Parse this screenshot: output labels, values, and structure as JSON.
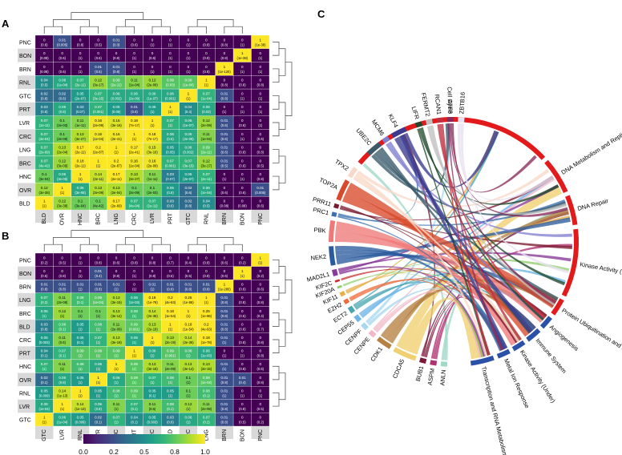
{
  "panels": {
    "a": "A",
    "b": "B",
    "c": "C"
  },
  "colors": {
    "viridis": [
      "#440154",
      "#482878",
      "#3e4989",
      "#31688e",
      "#26828e",
      "#1f9e89",
      "#35b779",
      "#6ece58",
      "#b5de2b",
      "#fde725"
    ],
    "row_label_bg": [
      "#ffffff",
      "#d9d9d9"
    ],
    "chord_red": "#e31a1c",
    "chord_blue": "#2b50a8"
  },
  "colorbar": {
    "ticks": [
      "0.0",
      "0.2",
      "0.5",
      "0.8",
      "1.0"
    ],
    "values": [
      0,
      0.25,
      0.5,
      0.75,
      1
    ]
  },
  "chart_data": [
    {
      "type": "heatmap",
      "panel": "A",
      "rows": [
        "PNC",
        "BON",
        "BRN",
        "RNL",
        "GTC",
        "PRT",
        "LVR",
        "CRC",
        "LNG",
        "BRC",
        "HNC",
        "OVR",
        "BLD"
      ],
      "cols": [
        "BLD",
        "OVR",
        "HNC",
        "BRC",
        "LNG",
        "CRC",
        "LVR",
        "PRT",
        "GTC",
        "RNL",
        "BRN",
        "BON",
        "PNC"
      ],
      "values": [
        [
          0,
          0.01,
          0,
          0,
          0.01,
          0,
          0,
          0,
          0,
          0,
          0,
          0,
          1
        ],
        [
          0,
          0,
          0,
          0,
          0,
          0,
          0,
          0,
          0,
          0,
          0,
          1,
          0
        ],
        [
          0,
          0,
          0,
          0.01,
          0.01,
          0,
          0,
          0,
          0,
          0,
          1,
          0,
          0
        ],
        [
          0.04,
          0.06,
          0.07,
          0.12,
          0.09,
          0.11,
          0.12,
          0.09,
          0.09,
          1,
          0,
          0,
          0
        ],
        [
          0.02,
          0.02,
          0.05,
          0.07,
          0.06,
          0.06,
          0.06,
          0.06,
          1,
          0.07,
          0.01,
          0,
          0
        ],
        [
          0.03,
          0.06,
          0.03,
          0.07,
          0.05,
          0.01,
          0.05,
          1,
          0.04,
          0.06,
          0,
          0,
          0
        ],
        [
          0.07,
          0.1,
          0.11,
          0.16,
          0.15,
          0.18,
          1,
          0.07,
          0.06,
          0.12,
          0.01,
          0,
          0
        ],
        [
          0.07,
          0.1,
          0.13,
          0.16,
          0.16,
          1,
          0.18,
          0.06,
          0.06,
          0.11,
          0.01,
          0,
          0
        ],
        [
          0.07,
          0.13,
          0.17,
          0.2,
          1,
          0.17,
          0.15,
          0.05,
          0.06,
          0.09,
          0.01,
          0,
          0
        ],
        [
          0.07,
          0.12,
          0.18,
          1,
          0.2,
          0.16,
          0.16,
          0.07,
          0.07,
          0.12,
          0.01,
          0,
          0
        ],
        [
          0.1,
          0.06,
          1,
          0.14,
          0.17,
          0.13,
          0.11,
          0.03,
          0.05,
          0.07,
          0,
          0,
          0
        ],
        [
          0.12,
          1,
          0.06,
          0.13,
          0.13,
          0.1,
          0.1,
          0.05,
          0.02,
          0.06,
          0,
          0,
          0.01
        ],
        [
          1,
          0.12,
          0.1,
          0.1,
          0.17,
          0.07,
          0.07,
          0.03,
          0.02,
          0.04,
          0,
          0,
          0
        ]
      ],
      "pvalues": [
        [
          "(0.6)",
          "(0.005)",
          "(0.8)",
          "(0.5)",
          "(0.3)",
          "(0.6)",
          "(1)",
          "(1)",
          "(1)",
          "(0.8)",
          "(0.8)",
          "(1)",
          "(1e-38)"
        ],
        [
          "(0.08)",
          "(0.6)",
          "(1)",
          "(0.6)",
          "(0.8)",
          "(1)",
          "(0.6)",
          "(1)",
          "(1)",
          "(0.8)",
          "(0.8)",
          "(1e-38)",
          "(1)"
        ],
        [
          "(0.08)",
          "(0.6)",
          "(1)",
          "(0.5)",
          "(0.8)",
          "(1)",
          "(1)",
          "(1)",
          "(1)",
          "(0.8)",
          "(1e-120)",
          "(1)",
          "(1)"
        ],
        [
          "(0.5)",
          "(1e-04)",
          "(2e-11)",
          "(3e-17)",
          "(2e-11)",
          "(1e-04)",
          "(2e-09)",
          "(0.03)",
          "(1e-04)",
          "(1)",
          "(0.8)",
          "(0.8)",
          "(0.8)"
        ],
        [
          "(0.8)",
          "(0.6)",
          "(2e-07)",
          "(3e-15)",
          "(0.002)",
          "(2e-09)",
          "(1e-07)",
          "(0.001)",
          "(1)",
          "(1e-04)",
          "(0.8)",
          "(1)",
          "(1)"
        ],
        [
          "(0.6)",
          "(0.8)",
          "(0.07)",
          "(0.001)",
          "(0.05)",
          "(0.6)",
          "(1)",
          "(1)",
          "(0.4)",
          "(0.03)",
          "(1)",
          "(1)",
          "(1)"
        ],
        [
          "(1e-11)",
          "(2e-03)",
          "(1e-11)",
          "(2e-09)",
          "(3e-16)",
          "(7e-17)",
          "(1)",
          "(1)",
          "(1e-07)",
          "(2e-09)",
          "(0.6)",
          "(0.6)",
          "(1)"
        ],
        [
          "(4e-04)",
          "(2e-09)",
          "(3e-27)",
          "(1e-04)",
          "(2e-41)",
          "(1)",
          "(7e-17)",
          "(0.6)",
          "(2e-09)",
          "(1e-04)",
          "(0.6)",
          "(1)",
          "(0.6)"
        ],
        [
          "(2e-69)",
          "(2e-04)",
          "(2e-11)",
          "(2e-87)",
          "(1)",
          "(2e-41)",
          "(3e-16)",
          "(0.05)",
          "(0.002)",
          "(2e-11)",
          "(0.6)",
          "(0.8)",
          "(0.8)"
        ],
        [
          "(4e-42)",
          "(3e-09)",
          "(2e-11)",
          "(1)",
          "(2e-87)",
          "(1e-04)",
          "(2e-09)",
          "(0.001)",
          "(3e-15)",
          "(3e-17)",
          "(0.5)",
          "(0.6)",
          "(0.5)"
        ],
        [
          "(3e-04)",
          "(3e-06)",
          "(1)",
          "(2e-11)",
          "(2e-11)",
          "(3e-27)",
          "(1e-11)",
          "(0.07)",
          "(2e-07)",
          "(2e-11)",
          "(1)",
          "(1)",
          "(0.8)"
        ],
        [
          "(3e-38)",
          "(1)",
          "(3e-06)",
          "(3e-09)",
          "(2e-04)",
          "(2e-09)",
          "(2e-03)",
          "(0.8)",
          "(0.6)",
          "(1e-04)",
          "(0.6)",
          "(0.6)",
          "(0.005)"
        ],
        [
          "(1)",
          "(3e-38)",
          "(3e-04)",
          "(4e-42)",
          "(2e-69)",
          "(4e-04)",
          "(1e-11)",
          "(0.6)",
          "(0.8)",
          "(0.5)",
          "(0.08)",
          "(0.08)",
          "(0.6)"
        ]
      ]
    },
    {
      "type": "heatmap",
      "panel": "B",
      "rows": [
        "PNC",
        "BON",
        "BRN",
        "LNG",
        "BRC",
        "BLD",
        "CRC",
        "PRT",
        "HNC",
        "OVR",
        "RNL",
        "LVR",
        "GTC"
      ],
      "cols": [
        "GTC",
        "LVR",
        "RNL",
        "OVR",
        "HNC",
        "PRT",
        "CRC",
        "BLD",
        "BRC",
        "LNG",
        "BRN",
        "BON",
        "PNC"
      ],
      "values": [
        [
          0,
          0,
          0,
          0,
          0,
          0,
          0,
          0,
          0,
          0,
          0,
          0,
          1
        ],
        [
          0,
          0,
          0,
          0.01,
          0,
          0,
          0,
          0,
          0,
          0,
          0,
          1,
          0
        ],
        [
          0.01,
          0.01,
          0.01,
          0.01,
          0.01,
          0,
          0.01,
          0.01,
          0.01,
          0.01,
          1,
          0,
          0
        ],
        [
          0.07,
          0.11,
          0.08,
          0.09,
          0.13,
          0.06,
          0.18,
          0.2,
          0.25,
          1,
          0.01,
          0,
          0
        ],
        [
          0.06,
          0.12,
          0.1,
          0.1,
          0.13,
          0.08,
          0.14,
          0.18,
          1,
          0.25,
          0.01,
          0,
          0
        ],
        [
          0.03,
          0.08,
          0.05,
          0.08,
          0.11,
          0.09,
          0.13,
          1,
          0.18,
          0.2,
          0.01,
          0,
          0
        ],
        [
          0.05,
          0.11,
          0.05,
          0.07,
          0.13,
          0.06,
          1,
          0.13,
          0.14,
          0.18,
          0.01,
          0,
          0
        ],
        [
          0.04,
          0.07,
          0.09,
          0.09,
          0.09,
          1,
          0.06,
          0.09,
          0.08,
          0.06,
          0,
          0,
          0
        ],
        [
          0.07,
          0.11,
          0.08,
          0.06,
          1,
          0.09,
          0.13,
          0.11,
          0.13,
          0.13,
          0.01,
          0,
          0
        ],
        [
          0.02,
          0.06,
          0.05,
          1,
          0.06,
          0.09,
          0.07,
          0.08,
          0.1,
          0.09,
          0.01,
          0.01,
          0
        ],
        [
          0.05,
          0.14,
          1,
          0.05,
          0.08,
          0.09,
          0.05,
          0.05,
          0.1,
          0.08,
          0.01,
          0,
          0
        ],
        [
          0.06,
          1,
          0.14,
          0.06,
          0.11,
          0.07,
          0.11,
          0.08,
          0.12,
          0.11,
          0.01,
          0,
          0
        ],
        [
          1,
          0.06,
          0.05,
          0.02,
          0.07,
          0.04,
          0.05,
          0.03,
          0.06,
          0.07,
          0.01,
          0,
          0
        ]
      ],
      "pvalues": [
        [
          "(0.2)",
          "(0.5)",
          "(1)",
          "(0.8)",
          "(0.6)",
          "(0.8)",
          "(0.8)",
          "(0.7)",
          "(0.4)",
          "(0.8)",
          "(0.6)",
          "(0.2)",
          "(1)"
        ],
        [
          "(0.5)",
          "(0.8)",
          "(1)",
          "(0.4)",
          "(0.8)",
          "(1)",
          "(0.8)",
          "(0.6)",
          "(0.5)",
          "(0.8)",
          "(0.6)",
          "(1)",
          "(0.2)"
        ],
        [
          "(0.8)",
          "(0.8)",
          "(1)",
          "(0.8)",
          "(1)",
          "(1)",
          "(1)",
          "(0.8)",
          "(0.8)",
          "(0.8)",
          "(1e-280)",
          "(0.6)",
          "(0.6)"
        ],
        [
          "(0.2)",
          "(2e-08)",
          "(0.1)",
          "(1e-04)",
          "(3e-15)",
          "(1e-03)",
          "(1e-78)",
          "(4e-63)",
          "(1e-86)",
          "(1)",
          "(0.8)",
          "(0.8)",
          "(0.8)"
        ],
        [
          "(1)",
          "(1)",
          "(1)",
          "(1)",
          "(3e-14)",
          "(1)",
          "(2e-35)",
          "(1e-54)",
          "(1)",
          "(1e-86)",
          "(0.8)",
          "(0.5)",
          "(0.4)"
        ],
        [
          "(0.8)",
          "(0.1)",
          "(1)",
          "(1)",
          "(2e-09)",
          "(0.001)",
          "(2e-19)",
          "(1)",
          "(1e-54)",
          "(4e-63)",
          "(0.8)",
          "(0.6)",
          "(0.7)"
        ],
        [
          "(0.003)",
          "(0.6)",
          "(0.1)",
          "(1)",
          "(3e-18)",
          "(1)",
          "(1)",
          "(2e-19)",
          "(2e-35)",
          "(1e-78)",
          "(1)",
          "(0.8)",
          "(0.8)"
        ],
        [
          "(0.1)",
          "(0.1)",
          "(1)",
          "(1)",
          "(1)",
          "(1)",
          "(1)",
          "(0.001)",
          "(1)",
          "(1e-03)",
          "(1)",
          "(1)",
          "(0.8)"
        ],
        [
          "(1)",
          "(1)",
          "(1)",
          "(1)",
          "(1)",
          "(1)",
          "(3e-18)",
          "(2e-09)",
          "(3e-14)",
          "(3e-15)",
          "(1)",
          "(0.8)",
          "(0.6)"
        ],
        [
          "(0.1)",
          "(0.8)",
          "(1)",
          "(1)",
          "(1)",
          "(1)",
          "(1)",
          "(1)",
          "(1)",
          "(1e-04)",
          "(0.8)",
          "(0.4)",
          "(0.8)"
        ],
        [
          "(0.009)",
          "(1e-13)",
          "(1)",
          "(1)",
          "(1)",
          "(1)",
          "(0.1)",
          "(1)",
          "(1)",
          "(0.1)",
          "(1)",
          "(1)",
          "(1)"
        ],
        [
          "(1e-04)",
          "(1)",
          "(1e-13)",
          "(0.8)",
          "(1)",
          "(0.1)",
          "(0.6)",
          "(0.1)",
          "(1)",
          "(2e-08)",
          "(0.8)",
          "(0.8)",
          "(0.5)"
        ],
        [
          "(1)",
          "(1e-04)",
          "(0.009)",
          "(0.1)",
          "(1)",
          "(0.1)",
          "(0.003)",
          "(0.8)",
          "(1)",
          "(0.2)",
          "(0.8)",
          "(0.5)",
          "(0.2)"
        ]
      ]
    },
    {
      "type": "chord",
      "panel": "C",
      "categories": [
        {
          "label": "Cell Cycle",
          "color": "#e31a1c",
          "start": 220,
          "end": 317
        },
        {
          "label": "DNA Metabolism and Replication",
          "color": "#e31a1c",
          "start": 319,
          "end": 336
        },
        {
          "label": "DNA Repair",
          "color": "#e31a1c",
          "start": 338,
          "end": 352
        },
        {
          "label": "Kinase Activity (Over)",
          "color": "#e31a1c",
          "start": 354,
          "end": 386
        },
        {
          "label": "Protein Ubiquitination and Degradation",
          "color": "#e31a1c",
          "start": 388,
          "end": 396
        },
        {
          "label": "Angiogenesis",
          "color": "#2b50a8",
          "start": 398,
          "end": 404
        },
        {
          "label": "Immune System",
          "color": "#2b50a8",
          "start": 406,
          "end": 413
        },
        {
          "label": "Kinase Activity (Under)",
          "color": "#2b50a8",
          "start": 415,
          "end": 421
        },
        {
          "label": "Metal Ion Response",
          "color": "#2b50a8",
          "start": 423,
          "end": 429
        },
        {
          "label": "Transcription and RNA Metabolism",
          "color": "#2b50a8",
          "start": 431,
          "end": 442
        }
      ],
      "genes": [
        {
          "label": "ANLN",
          "color": "#9fd8c7",
          "start": 93,
          "end": 96
        },
        {
          "label": "ASPM",
          "color": "#b03070",
          "start": 98,
          "end": 101
        },
        {
          "label": "BUB1",
          "color": "#7d1a3c",
          "start": 103,
          "end": 106
        },
        {
          "label": "CDCA5",
          "color": "#f0d070",
          "start": 108,
          "end": 119
        },
        {
          "label": "CDK1",
          "color": "#b58040",
          "start": 121,
          "end": 128
        },
        {
          "label": "CENPE",
          "color": "#f2b8c8",
          "start": 130,
          "end": 133
        },
        {
          "label": "CENPF",
          "color": "#a8d8f0",
          "start": 135,
          "end": 138
        },
        {
          "label": "CEP55",
          "color": "#6eb5e8",
          "start": 140,
          "end": 143
        },
        {
          "label": "ECT2",
          "color": "#4aa7b0",
          "start": 145,
          "end": 148
        },
        {
          "label": "EZH2",
          "color": "#ef6a3a",
          "start": 150,
          "end": 152
        },
        {
          "label": "KIF11",
          "color": "#e8b04a",
          "start": 154,
          "end": 156
        },
        {
          "label": "KIF20A",
          "color": "#8fcf6a",
          "start": 158,
          "end": 159
        },
        {
          "label": "KIF2C",
          "color": "#c83030",
          "start": 161,
          "end": 162
        },
        {
          "label": "MAD2L1",
          "color": "#883898",
          "start": 164,
          "end": 167
        },
        {
          "label": "NEK2",
          "color": "#2a5b9e",
          "start": 169,
          "end": 178
        },
        {
          "label": "PBK",
          "color": "#f07878",
          "start": 180,
          "end": 190
        },
        {
          "label": "PRC1",
          "color": "#3b70b0",
          "start": 192,
          "end": 194
        },
        {
          "label": "PRR11",
          "color": "#7a1a30",
          "start": 196,
          "end": 198
        },
        {
          "label": "TOP2A",
          "color": "#d84a2a",
          "start": 200,
          "end": 210
        },
        {
          "label": "TPX2",
          "color": "#f8d8c8",
          "start": 212,
          "end": 217
        },
        {
          "label": "UBE2C",
          "color": "#3a5a6a",
          "start": 226,
          "end": 233
        },
        {
          "label": "MCM6",
          "color": "#8080d0",
          "start": 235,
          "end": 238
        },
        {
          "label": "KLF4",
          "color": "#3a3a90",
          "start": 240,
          "end": 247
        },
        {
          "label": "LIFR",
          "color": "#1f4a2a",
          "start": 252,
          "end": 255
        },
        {
          "label": "FERMT2",
          "color": "#c0c0c0",
          "start": 257,
          "end": 260
        },
        {
          "label": "RCAN1",
          "color": "#c03040",
          "start": 262,
          "end": 265
        },
        {
          "label": "ATF3",
          "color": "#8a2a5a",
          "start": 267,
          "end": 270
        },
        {
          "label": "ZBTB16",
          "color": "#e8e0f0",
          "start": 272,
          "end": 275
        }
      ]
    }
  ]
}
